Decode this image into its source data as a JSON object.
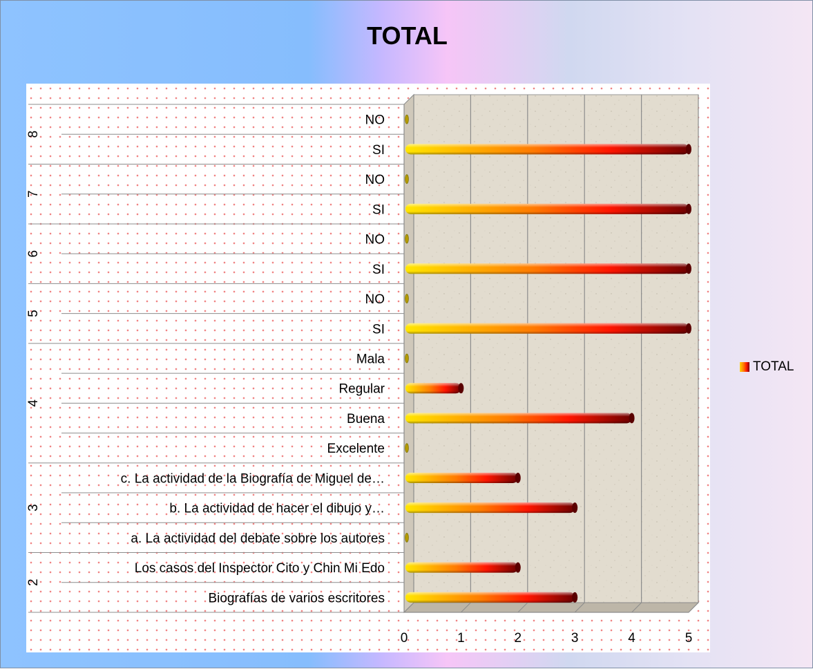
{
  "chart_data": {
    "type": "bar",
    "orientation": "horizontal",
    "title": "TOTAL",
    "xlabel": "",
    "ylabel": "",
    "xlim": [
      0,
      5
    ],
    "x_ticks": [
      "0",
      "1",
      "2",
      "3",
      "4",
      "5"
    ],
    "grid": true,
    "legend_position": "right",
    "groups": [
      {
        "label": "2",
        "items": [
          "Biografías de varios escritores",
          "Los casos del Inspector Cito y Chin Mi Edo"
        ]
      },
      {
        "label": "3",
        "items": [
          "a. La actividad del debate sobre los autores",
          "b. La actividad de hacer el dibujo y…",
          "c. La actividad de la Biografía de Miguel de…"
        ]
      },
      {
        "label": "4",
        "items": [
          "Excelente",
          "Buena",
          "Regular",
          "Mala"
        ]
      },
      {
        "label": "5",
        "items": [
          "SI",
          "NO"
        ]
      },
      {
        "label": "6",
        "items": [
          "SI",
          "NO"
        ]
      },
      {
        "label": "7",
        "items": [
          "SI",
          "NO"
        ]
      },
      {
        "label": "8",
        "items": [
          "SI",
          "NO"
        ]
      }
    ],
    "series": [
      {
        "name": "TOTAL",
        "values": [
          3,
          2,
          0,
          3,
          2,
          0,
          4,
          1,
          0,
          5,
          0,
          5,
          0,
          5,
          0,
          5,
          0
        ]
      }
    ],
    "colors": {
      "bar_start": "#ffe600",
      "bar_mid": "#ff7a00",
      "bar_red": "#ff1500",
      "bar_end": "#6e0000"
    }
  },
  "legend": {
    "label": "TOTAL"
  }
}
